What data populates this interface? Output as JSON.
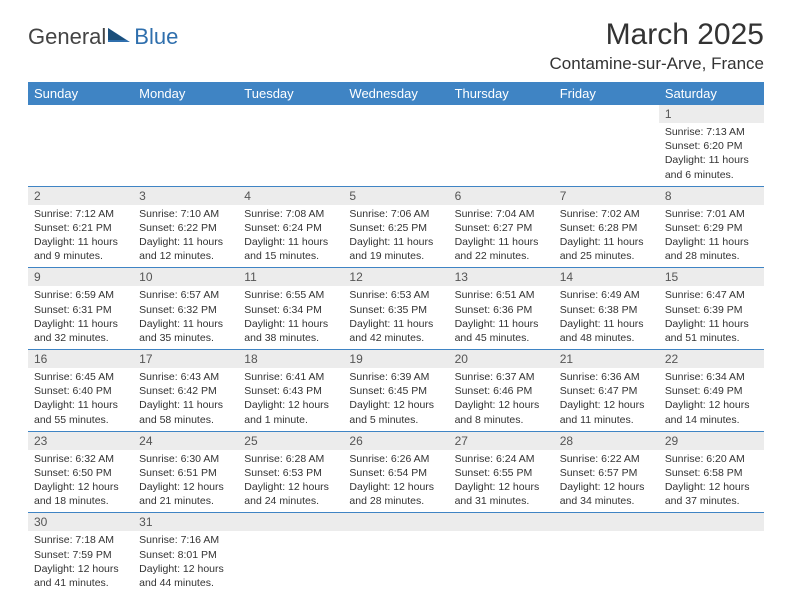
{
  "brand": {
    "part1": "General",
    "part2": "Blue"
  },
  "title": "March 2025",
  "location": "Contamine-sur-Arve, France",
  "colors": {
    "header_bg": "#3f84c4",
    "header_text": "#ffffff",
    "daynum_bg": "#ececec",
    "border": "#3f84c4",
    "brand_blue": "#2f6fad"
  },
  "weekdays": [
    "Sunday",
    "Monday",
    "Tuesday",
    "Wednesday",
    "Thursday",
    "Friday",
    "Saturday"
  ],
  "weeks": [
    [
      null,
      null,
      null,
      null,
      null,
      null,
      {
        "n": "1",
        "sunrise": "Sunrise: 7:13 AM",
        "sunset": "Sunset: 6:20 PM",
        "daylight": "Daylight: 11 hours and 6 minutes."
      }
    ],
    [
      {
        "n": "2",
        "sunrise": "Sunrise: 7:12 AM",
        "sunset": "Sunset: 6:21 PM",
        "daylight": "Daylight: 11 hours and 9 minutes."
      },
      {
        "n": "3",
        "sunrise": "Sunrise: 7:10 AM",
        "sunset": "Sunset: 6:22 PM",
        "daylight": "Daylight: 11 hours and 12 minutes."
      },
      {
        "n": "4",
        "sunrise": "Sunrise: 7:08 AM",
        "sunset": "Sunset: 6:24 PM",
        "daylight": "Daylight: 11 hours and 15 minutes."
      },
      {
        "n": "5",
        "sunrise": "Sunrise: 7:06 AM",
        "sunset": "Sunset: 6:25 PM",
        "daylight": "Daylight: 11 hours and 19 minutes."
      },
      {
        "n": "6",
        "sunrise": "Sunrise: 7:04 AM",
        "sunset": "Sunset: 6:27 PM",
        "daylight": "Daylight: 11 hours and 22 minutes."
      },
      {
        "n": "7",
        "sunrise": "Sunrise: 7:02 AM",
        "sunset": "Sunset: 6:28 PM",
        "daylight": "Daylight: 11 hours and 25 minutes."
      },
      {
        "n": "8",
        "sunrise": "Sunrise: 7:01 AM",
        "sunset": "Sunset: 6:29 PM",
        "daylight": "Daylight: 11 hours and 28 minutes."
      }
    ],
    [
      {
        "n": "9",
        "sunrise": "Sunrise: 6:59 AM",
        "sunset": "Sunset: 6:31 PM",
        "daylight": "Daylight: 11 hours and 32 minutes."
      },
      {
        "n": "10",
        "sunrise": "Sunrise: 6:57 AM",
        "sunset": "Sunset: 6:32 PM",
        "daylight": "Daylight: 11 hours and 35 minutes."
      },
      {
        "n": "11",
        "sunrise": "Sunrise: 6:55 AM",
        "sunset": "Sunset: 6:34 PM",
        "daylight": "Daylight: 11 hours and 38 minutes."
      },
      {
        "n": "12",
        "sunrise": "Sunrise: 6:53 AM",
        "sunset": "Sunset: 6:35 PM",
        "daylight": "Daylight: 11 hours and 42 minutes."
      },
      {
        "n": "13",
        "sunrise": "Sunrise: 6:51 AM",
        "sunset": "Sunset: 6:36 PM",
        "daylight": "Daylight: 11 hours and 45 minutes."
      },
      {
        "n": "14",
        "sunrise": "Sunrise: 6:49 AM",
        "sunset": "Sunset: 6:38 PM",
        "daylight": "Daylight: 11 hours and 48 minutes."
      },
      {
        "n": "15",
        "sunrise": "Sunrise: 6:47 AM",
        "sunset": "Sunset: 6:39 PM",
        "daylight": "Daylight: 11 hours and 51 minutes."
      }
    ],
    [
      {
        "n": "16",
        "sunrise": "Sunrise: 6:45 AM",
        "sunset": "Sunset: 6:40 PM",
        "daylight": "Daylight: 11 hours and 55 minutes."
      },
      {
        "n": "17",
        "sunrise": "Sunrise: 6:43 AM",
        "sunset": "Sunset: 6:42 PM",
        "daylight": "Daylight: 11 hours and 58 minutes."
      },
      {
        "n": "18",
        "sunrise": "Sunrise: 6:41 AM",
        "sunset": "Sunset: 6:43 PM",
        "daylight": "Daylight: 12 hours and 1 minute."
      },
      {
        "n": "19",
        "sunrise": "Sunrise: 6:39 AM",
        "sunset": "Sunset: 6:45 PM",
        "daylight": "Daylight: 12 hours and 5 minutes."
      },
      {
        "n": "20",
        "sunrise": "Sunrise: 6:37 AM",
        "sunset": "Sunset: 6:46 PM",
        "daylight": "Daylight: 12 hours and 8 minutes."
      },
      {
        "n": "21",
        "sunrise": "Sunrise: 6:36 AM",
        "sunset": "Sunset: 6:47 PM",
        "daylight": "Daylight: 12 hours and 11 minutes."
      },
      {
        "n": "22",
        "sunrise": "Sunrise: 6:34 AM",
        "sunset": "Sunset: 6:49 PM",
        "daylight": "Daylight: 12 hours and 14 minutes."
      }
    ],
    [
      {
        "n": "23",
        "sunrise": "Sunrise: 6:32 AM",
        "sunset": "Sunset: 6:50 PM",
        "daylight": "Daylight: 12 hours and 18 minutes."
      },
      {
        "n": "24",
        "sunrise": "Sunrise: 6:30 AM",
        "sunset": "Sunset: 6:51 PM",
        "daylight": "Daylight: 12 hours and 21 minutes."
      },
      {
        "n": "25",
        "sunrise": "Sunrise: 6:28 AM",
        "sunset": "Sunset: 6:53 PM",
        "daylight": "Daylight: 12 hours and 24 minutes."
      },
      {
        "n": "26",
        "sunrise": "Sunrise: 6:26 AM",
        "sunset": "Sunset: 6:54 PM",
        "daylight": "Daylight: 12 hours and 28 minutes."
      },
      {
        "n": "27",
        "sunrise": "Sunrise: 6:24 AM",
        "sunset": "Sunset: 6:55 PM",
        "daylight": "Daylight: 12 hours and 31 minutes."
      },
      {
        "n": "28",
        "sunrise": "Sunrise: 6:22 AM",
        "sunset": "Sunset: 6:57 PM",
        "daylight": "Daylight: 12 hours and 34 minutes."
      },
      {
        "n": "29",
        "sunrise": "Sunrise: 6:20 AM",
        "sunset": "Sunset: 6:58 PM",
        "daylight": "Daylight: 12 hours and 37 minutes."
      }
    ],
    [
      {
        "n": "30",
        "sunrise": "Sunrise: 7:18 AM",
        "sunset": "Sunset: 7:59 PM",
        "daylight": "Daylight: 12 hours and 41 minutes."
      },
      {
        "n": "31",
        "sunrise": "Sunrise: 7:16 AM",
        "sunset": "Sunset: 8:01 PM",
        "daylight": "Daylight: 12 hours and 44 minutes."
      },
      null,
      null,
      null,
      null,
      null
    ]
  ]
}
